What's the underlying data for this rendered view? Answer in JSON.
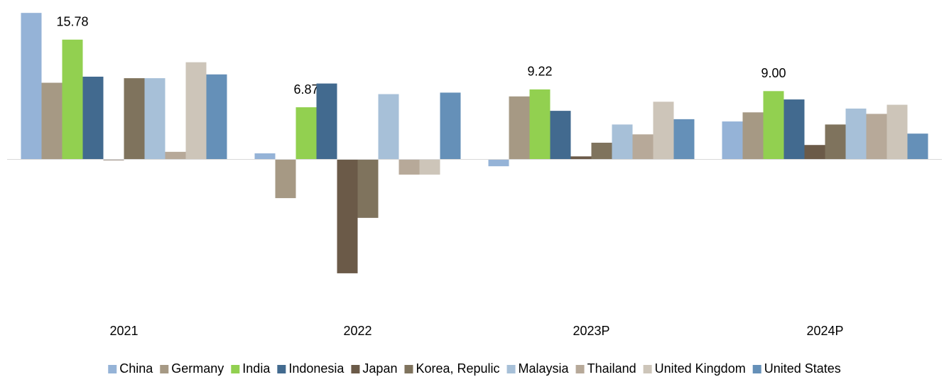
{
  "chart_data": {
    "type": "bar",
    "categories": [
      "2021",
      "2022",
      "2023P",
      "2024P"
    ],
    "series": [
      {
        "name": "China",
        "color": "#95b3d7",
        "values": [
          19.3,
          0.8,
          -0.9,
          5.0
        ]
      },
      {
        "name": "Germany",
        "color": "#a69984",
        "values": [
          10.1,
          -5.1,
          8.3,
          6.2
        ]
      },
      {
        "name": "India",
        "color": "#92d050",
        "values": [
          15.78,
          6.87,
          9.22,
          9.0
        ],
        "value_labels": [
          "15.78",
          "6.87",
          "9.22",
          "9.00"
        ]
      },
      {
        "name": "Indonesia",
        "color": "#426a8f",
        "values": [
          10.9,
          10.0,
          6.4,
          7.9
        ]
      },
      {
        "name": "Japan",
        "color": "#6b5a48",
        "values": [
          -0.1,
          -15.0,
          0.4,
          1.9
        ]
      },
      {
        "name": "Korea, Repulic",
        "color": "#7f735d",
        "values": [
          10.7,
          -7.7,
          2.2,
          4.6
        ]
      },
      {
        "name": "Malaysia",
        "color": "#a7c0d8",
        "values": [
          10.7,
          8.6,
          4.6,
          6.7
        ]
      },
      {
        "name": "Thailand",
        "color": "#b7a999",
        "values": [
          1.0,
          -2.0,
          3.3,
          6.0
        ]
      },
      {
        "name": "United Kingdom",
        "color": "#cdc5b9",
        "values": [
          12.8,
          -2.0,
          7.6,
          7.2
        ]
      },
      {
        "name": "United States",
        "color": "#6590b8",
        "values": [
          11.2,
          8.8,
          5.3,
          3.4
        ]
      }
    ],
    "ylim": [
      -18,
      21
    ],
    "legend": "bottom"
  }
}
